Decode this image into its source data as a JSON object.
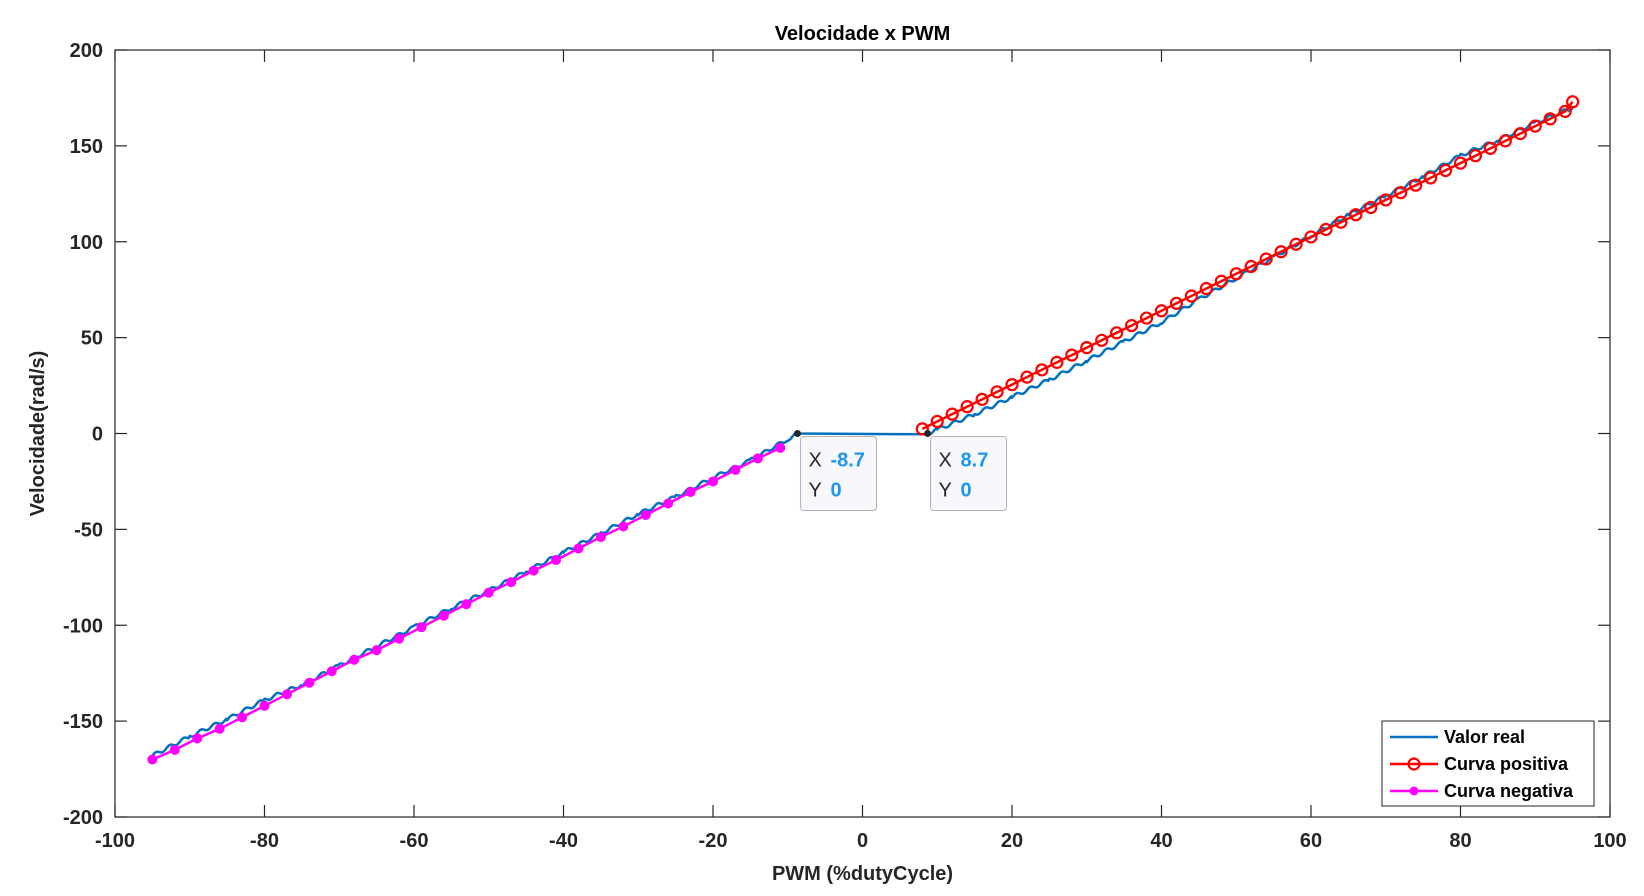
{
  "chart_data": {
    "type": "line",
    "title": "Velocidade x PWM",
    "xlabel": "PWM (%dutyCycle)",
    "ylabel": "Velocidade(rad/s)",
    "xlim": [
      -100,
      100
    ],
    "ylim": [
      -200,
      200
    ],
    "xticks": [
      -100,
      -80,
      -60,
      -40,
      -20,
      0,
      20,
      40,
      60,
      80,
      100
    ],
    "yticks": [
      -200,
      -150,
      -100,
      -50,
      0,
      50,
      100,
      150,
      200
    ],
    "grid": false,
    "legend_position": "bottom-right",
    "series": [
      {
        "name": "Valor real",
        "color": "#0072bd",
        "marker": "none",
        "x": [
          -95,
          -90,
          -85,
          -80,
          -75,
          -70,
          -65,
          -60,
          -55,
          -50,
          -45,
          -40,
          -35,
          -30,
          -25,
          -20,
          -15,
          -10,
          -8.7,
          8.7,
          10,
          15,
          20,
          25,
          30,
          35,
          40,
          45,
          50,
          55,
          60,
          65,
          70,
          75,
          80,
          85,
          90,
          95
        ],
        "y": [
          -168,
          -158,
          -149,
          -139,
          -131,
          -121,
          -111,
          -101,
          -91,
          -82,
          -72,
          -62,
          -52,
          -42,
          -33,
          -23,
          -14,
          -3,
          0,
          0,
          2,
          10,
          19,
          28,
          38,
          48,
          58,
          70,
          81,
          92,
          103,
          114,
          124,
          134,
          145,
          153,
          162,
          170
        ]
      },
      {
        "name": "Curva positiva",
        "color": "#ff0000",
        "marker": "o",
        "x": [
          8,
          10,
          12,
          14,
          16,
          18,
          20,
          22,
          24,
          26,
          28,
          30,
          32,
          34,
          36,
          38,
          40,
          42,
          44,
          46,
          48,
          50,
          52,
          54,
          56,
          58,
          60,
          62,
          64,
          66,
          68,
          70,
          72,
          74,
          76,
          78,
          80,
          82,
          84,
          86,
          88,
          90,
          92,
          94,
          95
        ],
        "y": [
          2.4,
          6.3,
          10.1,
          14,
          17.8,
          21.7,
          25.5,
          29.4,
          33.2,
          37.1,
          40.9,
          44.8,
          48.6,
          52.5,
          56.3,
          60.2,
          64,
          67.9,
          71.7,
          75.6,
          79.4,
          83.3,
          87.1,
          91,
          94.8,
          98.7,
          102.5,
          106.4,
          110.2,
          114.1,
          117.9,
          121.8,
          125.6,
          129.5,
          133.3,
          137.2,
          141,
          144.9,
          148.7,
          152.6,
          156.4,
          160.3,
          164.1,
          168,
          173
        ]
      },
      {
        "name": "Curva negativa",
        "color": "#ff00ff",
        "marker": "filled-dot",
        "x": [
          -95,
          -92,
          -89,
          -86,
          -83,
          -80,
          -77,
          -74,
          -71,
          -68,
          -65,
          -62,
          -59,
          -56,
          -53,
          -50,
          -47,
          -44,
          -41,
          -38,
          -35,
          -32,
          -29,
          -26,
          -23,
          -20,
          -17,
          -14,
          -11
        ],
        "y": [
          -170,
          -165,
          -159,
          -154,
          -148,
          -142,
          -136,
          -130,
          -124,
          -118,
          -113,
          -107,
          -101,
          -95,
          -89,
          -83,
          -77.5,
          -71.5,
          -66,
          -60,
          -54,
          -48.5,
          -42.5,
          -36.5,
          -30.5,
          -25,
          -19,
          -13,
          -7.5
        ]
      }
    ],
    "datatips": [
      {
        "x_key": "X",
        "x_value": "-8.7",
        "y_key": "Y",
        "y_value": "0",
        "at": [
          -8.7,
          0
        ]
      },
      {
        "x_key": "X",
        "x_value": "8.7",
        "y_key": "Y",
        "y_value": "0",
        "at": [
          8.7,
          0
        ]
      }
    ]
  }
}
